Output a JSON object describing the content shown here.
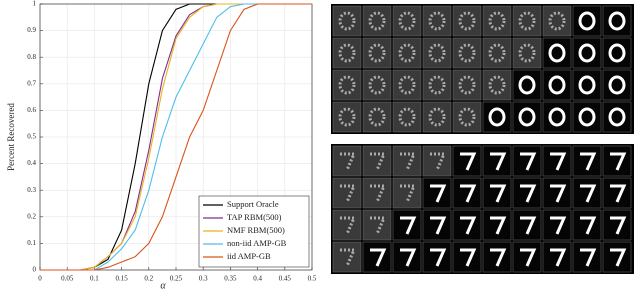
{
  "chart_data": {
    "type": "line",
    "x_label": "α",
    "y_label": "Percent Recovered",
    "x": [
      0,
      0.025,
      0.05,
      0.075,
      0.1,
      0.125,
      0.15,
      0.175,
      0.2,
      0.225,
      0.25,
      0.275,
      0.3,
      0.325,
      0.35,
      0.375,
      0.4,
      0.425,
      0.45,
      0.475,
      0.5
    ],
    "series": [
      {
        "name": "Support Oracle",
        "color": "#000000",
        "values": [
          0,
          0,
          0,
          0,
          0.01,
          0.04,
          0.15,
          0.4,
          0.7,
          0.9,
          0.98,
          1,
          1,
          1,
          1,
          1,
          1,
          1,
          1,
          1,
          1
        ]
      },
      {
        "name": "TAP RBM(500)",
        "color": "#7e2f8e",
        "values": [
          0,
          0,
          0,
          0,
          0.01,
          0.05,
          0.1,
          0.22,
          0.45,
          0.72,
          0.88,
          0.96,
          0.99,
          1,
          1,
          1,
          1,
          1,
          1,
          1,
          1
        ]
      },
      {
        "name": "NMF RBM(500)",
        "color": "#edb120",
        "values": [
          0,
          0,
          0,
          0,
          0.01,
          0.05,
          0.1,
          0.2,
          0.42,
          0.68,
          0.87,
          0.95,
          0.99,
          1,
          1,
          1,
          1,
          1,
          1,
          1,
          1
        ]
      },
      {
        "name": "non-iid AMP-GB",
        "color": "#4dbeee",
        "values": [
          0,
          0,
          0,
          0,
          0,
          0.03,
          0.08,
          0.15,
          0.3,
          0.5,
          0.65,
          0.75,
          0.85,
          0.95,
          0.99,
          1,
          1,
          1,
          1,
          1,
          1
        ]
      },
      {
        "name": "iid AMP-GB",
        "color": "#d95319",
        "values": [
          0,
          0,
          0,
          0,
          0,
          0.01,
          0.03,
          0.05,
          0.1,
          0.2,
          0.35,
          0.5,
          0.6,
          0.75,
          0.9,
          0.98,
          1,
          1,
          1,
          1,
          1
        ]
      }
    ],
    "xlim": [
      0,
      0.5
    ],
    "xticks": [
      0,
      0.05,
      0.1,
      0.15,
      0.2,
      0.25,
      0.3,
      0.35,
      0.4,
      0.45,
      0.5
    ],
    "ylim": [
      0,
      1
    ],
    "yticks": [
      0,
      0.1,
      0.2,
      0.3,
      0.4,
      0.5,
      0.6,
      0.7,
      0.8,
      0.9,
      1
    ],
    "grid": true,
    "legend": "lower-right"
  }
}
